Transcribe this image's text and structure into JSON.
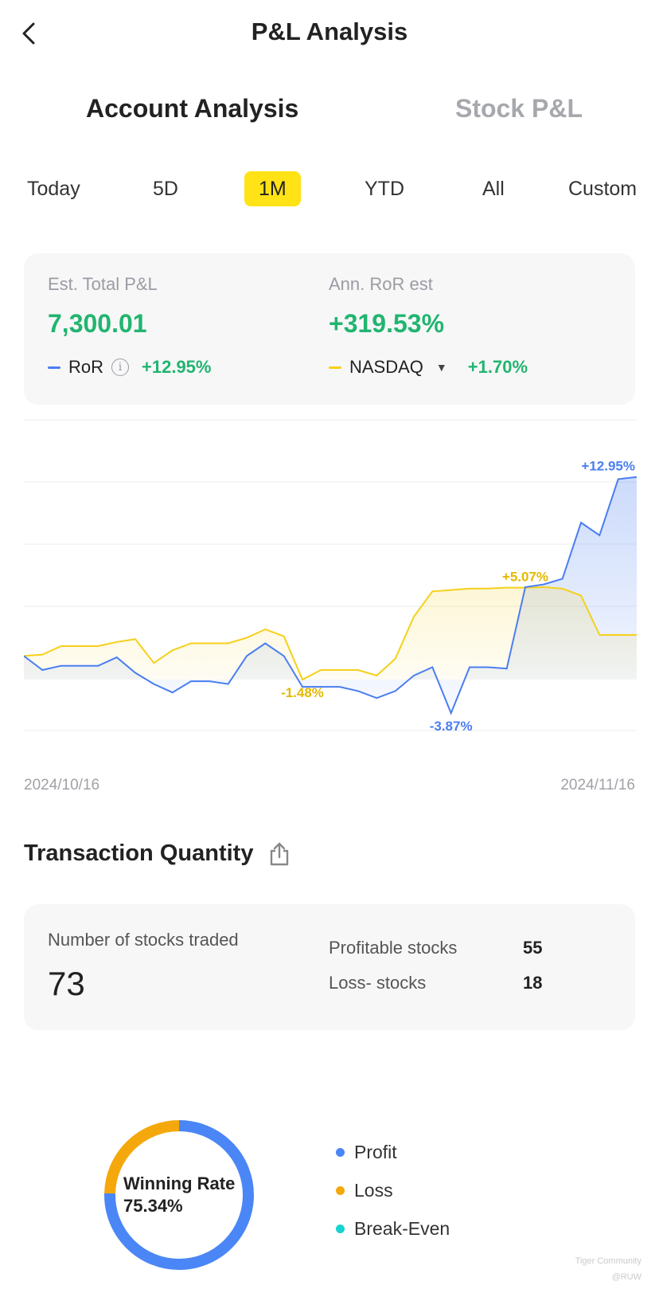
{
  "header": {
    "title": "P&L Analysis"
  },
  "tabs": [
    {
      "label": "Account Analysis",
      "active": true
    },
    {
      "label": "Stock P&L",
      "active": false
    }
  ],
  "periods": [
    {
      "label": "Today"
    },
    {
      "label": "5D"
    },
    {
      "label": "1M",
      "active": true
    },
    {
      "label": "YTD"
    },
    {
      "label": "All"
    },
    {
      "label": "Custom"
    }
  ],
  "summary": {
    "total_pl_label": "Est. Total P&L",
    "total_pl_value": "7,300.01",
    "ann_ror_label": "Ann. RoR est",
    "ann_ror_value": "+319.53%",
    "ror_label": "RoR",
    "ror_value": "+12.95%",
    "benchmark_label": "NASDAQ",
    "benchmark_value": "+1.70%"
  },
  "colors": {
    "ror": "#4a7ef0",
    "nasdaq": "#f5d01b",
    "green": "#21b56f",
    "profit": "#4a86f5",
    "loss": "#f5a80c",
    "breakeven": "#19d3d0"
  },
  "chart_data": {
    "type": "line",
    "x_start": "2024/10/16",
    "x_end": "2024/11/16",
    "ylim": [
      -5,
      16
    ],
    "series": [
      {
        "name": "RoR",
        "values": [
          0.2,
          -0.8,
          -0.5,
          -0.5,
          -0.5,
          0.1,
          -1.0,
          -1.8,
          -2.4,
          -1.6,
          -1.6,
          -1.8,
          0.2,
          1.1,
          0.2,
          -2.0,
          -2.0,
          -2.0,
          -2.3,
          -2.8,
          -2.3,
          -1.2,
          -0.6,
          -3.87,
          -0.6,
          -0.6,
          -0.7,
          5.1,
          5.3,
          5.7,
          9.7,
          8.8,
          12.8,
          12.95
        ]
      },
      {
        "name": "NASDAQ",
        "values": [
          0.2,
          0.3,
          0.9,
          0.9,
          0.9,
          1.2,
          1.4,
          -0.3,
          0.6,
          1.1,
          1.1,
          1.1,
          1.5,
          2.1,
          1.6,
          -1.48,
          -0.8,
          -0.8,
          -0.8,
          -1.2,
          0.0,
          3.0,
          4.8,
          4.9,
          5.0,
          5.0,
          5.07,
          5.07,
          5.1,
          5.0,
          4.5,
          1.7,
          1.7,
          1.7
        ]
      }
    ],
    "annotations": [
      {
        "label": "+12.95%",
        "series": "RoR",
        "index": 33
      },
      {
        "label": "-3.87%",
        "series": "RoR",
        "index": 23
      },
      {
        "label": "+5.07%",
        "series": "NASDAQ",
        "index": 27
      },
      {
        "label": "-1.48%",
        "series": "NASDAQ",
        "index": 15
      }
    ],
    "grid": true
  },
  "dates": {
    "start": "2024/10/16",
    "end": "2024/11/16"
  },
  "transactions": {
    "title": "Transaction Quantity",
    "stocks_traded_label": "Number of  stocks traded",
    "stocks_traded_value": "73",
    "profitable_label": "Profitable stocks",
    "profitable_value": "55",
    "loss_label": "Loss- stocks",
    "loss_value": "18"
  },
  "winning": {
    "label": "Winning Rate",
    "value": "75.34%",
    "profit_fraction": 0.7534,
    "legend": [
      {
        "label": "Profit",
        "color": "#4a86f5"
      },
      {
        "label": "Loss",
        "color": "#f5a80c"
      },
      {
        "label": "Break-Even",
        "color": "#19d3d0"
      }
    ]
  },
  "watermark": {
    "brand": "Tiger Community",
    "handle": "@RUW"
  }
}
